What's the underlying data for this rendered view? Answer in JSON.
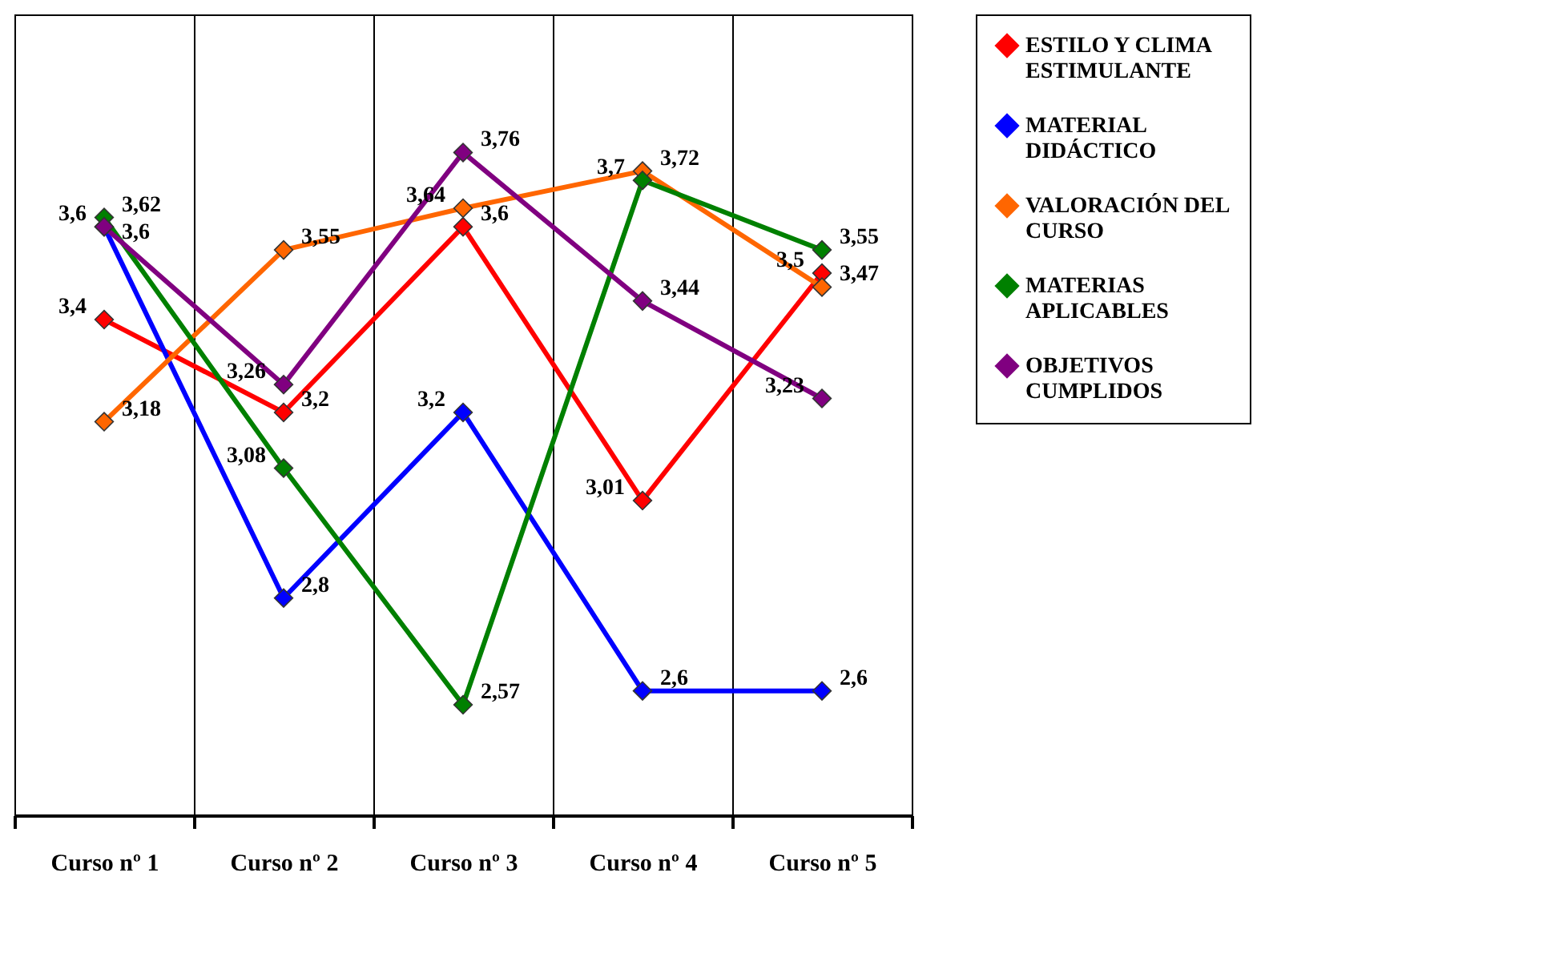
{
  "chart_data": {
    "type": "line",
    "categories": [
      "Curso nº 1",
      "Curso nº 2",
      "Curso nº 3",
      "Curso nº 4",
      "Curso nº 5"
    ],
    "series": [
      {
        "name": "ESTILO Y CLIMA ESTIMULANTE",
        "color": "#ff0000",
        "values": [
          3.4,
          3.2,
          3.6,
          3.01,
          3.5
        ],
        "value_labels": [
          "3,4",
          "3,2",
          "3,6",
          "3,01",
          "3,5"
        ]
      },
      {
        "name": "MATERIAL DIDÁCTICO",
        "color": "#0000ff",
        "values": [
          3.6,
          2.8,
          3.2,
          2.6,
          2.6
        ],
        "value_labels": [
          "3,6",
          "2,8",
          "3,2",
          "2,6",
          "2,6"
        ]
      },
      {
        "name": "VALORACIÓN DEL CURSO",
        "color": "#ff6600",
        "values": [
          3.18,
          3.55,
          3.64,
          3.72,
          3.47
        ],
        "value_labels": [
          "3,18",
          "3,55",
          "3,64",
          "3,72",
          "3,47"
        ]
      },
      {
        "name": "MATERIAS APLICABLES",
        "color": "#008000",
        "values": [
          3.62,
          3.08,
          2.57,
          3.7,
          3.55
        ],
        "value_labels": [
          "3,62",
          "3,08",
          "2,57",
          "3,7",
          "3,55"
        ]
      },
      {
        "name": "OBJETIVOS CUMPLIDOS",
        "color": "#800080",
        "values": [
          3.6,
          3.26,
          3.76,
          3.44,
          3.23
        ],
        "value_labels": [
          "3,6",
          "3,26",
          "3,76",
          "3,44",
          "3,23"
        ]
      }
    ],
    "marker": "diamond",
    "grid": "x",
    "legend": "right",
    "tick_labels": "x"
  }
}
